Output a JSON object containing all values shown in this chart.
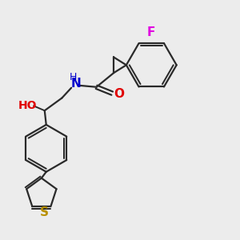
{
  "background_color": "#ececec",
  "bond_color": "#2a2a2a",
  "atom_colors": {
    "F": "#e000e0",
    "O": "#e00000",
    "N": "#0000cc",
    "S": "#b89000",
    "H_label": "#555555"
  },
  "figsize": [
    3.0,
    3.0
  ],
  "dpi": 100
}
